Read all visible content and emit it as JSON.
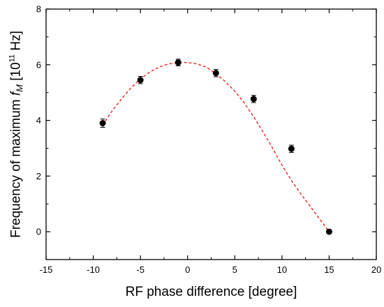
{
  "chart_data": {
    "type": "scatter",
    "xlabel": "RF phase difference [degree]",
    "ylabel": {
      "prefix": "Frequency of maximum",
      "symbol": "f",
      "symbol_subscript": "M",
      "unit_open": "[10",
      "unit_exponent": "11",
      "unit_close": " Hz]"
    },
    "xlim": [
      -15,
      20
    ],
    "ylim": [
      -1,
      8
    ],
    "x_ticks": [
      -15,
      -10,
      -5,
      0,
      5,
      10,
      15,
      20
    ],
    "y_ticks": [
      0,
      2,
      4,
      6,
      8
    ],
    "grid": false,
    "legend": "none",
    "series": [
      {
        "style": "markers-with-error-bars",
        "marker_color": "#000000",
        "x": [
          -9,
          -5,
          -1,
          3,
          7,
          11,
          15
        ],
        "y": [
          3.9,
          5.45,
          6.08,
          5.7,
          4.77,
          2.98,
          0.0
        ],
        "yerr": [
          0.15,
          0.13,
          0.12,
          0.13,
          0.13,
          0.13,
          0.0
        ]
      }
    ],
    "fit": {
      "style": "dashed",
      "color": "#e8241c",
      "x": [
        -9,
        -8,
        -7,
        -6,
        -5,
        -4,
        -3,
        -2,
        -1,
        0,
        1,
        2,
        3,
        4,
        5,
        6,
        7,
        8,
        9,
        10,
        11,
        12,
        13,
        14,
        15
      ],
      "y": [
        3.83,
        4.34,
        4.77,
        5.17,
        5.49,
        5.74,
        5.92,
        6.03,
        6.08,
        6.08,
        6.03,
        5.91,
        5.68,
        5.39,
        5.05,
        4.63,
        4.13,
        3.58,
        3.01,
        2.39,
        1.84,
        1.36,
        0.91,
        0.45,
        0.0
      ]
    }
  }
}
